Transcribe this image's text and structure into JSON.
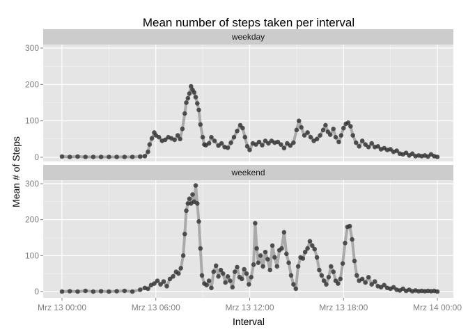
{
  "chart_data": {
    "type": "line",
    "title": "Mean number of steps taken per interval",
    "xlabel": "Interval",
    "ylabel": "Mean # of Steps",
    "x_unit": "hours since Mrz 13 00:00",
    "xlim": [
      0,
      24
    ],
    "ylim": [
      0,
      300
    ],
    "y_ticks": [
      0,
      100,
      200,
      300
    ],
    "x_ticks": [
      {
        "value": 0,
        "label": "Mrz 13 00:00"
      },
      {
        "value": 6,
        "label": "Mrz 13 06:00"
      },
      {
        "value": 12,
        "label": "Mrz 13 12:00"
      },
      {
        "value": 18,
        "label": "Mrz 13 18:00"
      },
      {
        "value": 24,
        "label": "Mrz 14 00:00"
      }
    ],
    "grid": true,
    "line_color": "#aaaaaa",
    "point_color": "#333333",
    "panel_background": "#e5e5e5",
    "strip_background": "#cccccc",
    "panels": [
      {
        "name": "weekday",
        "points": [
          [
            0,
            2
          ],
          [
            0.5,
            1
          ],
          [
            1,
            2
          ],
          [
            1.5,
            1
          ],
          [
            2,
            1
          ],
          [
            2.5,
            1
          ],
          [
            3,
            1
          ],
          [
            3.5,
            1
          ],
          [
            4,
            1
          ],
          [
            4.5,
            1
          ],
          [
            5,
            2
          ],
          [
            5.3,
            3
          ],
          [
            5.5,
            15
          ],
          [
            5.6,
            35
          ],
          [
            5.75,
            52
          ],
          [
            5.9,
            68
          ],
          [
            6.0,
            60
          ],
          [
            6.2,
            55
          ],
          [
            6.4,
            45
          ],
          [
            6.6,
            48
          ],
          [
            6.8,
            55
          ],
          [
            7.0,
            52
          ],
          [
            7.2,
            48
          ],
          [
            7.4,
            60
          ],
          [
            7.55,
            50
          ],
          [
            7.7,
            78
          ],
          [
            7.85,
            120
          ],
          [
            7.95,
            150
          ],
          [
            8.05,
            162
          ],
          [
            8.15,
            175
          ],
          [
            8.25,
            195
          ],
          [
            8.35,
            185
          ],
          [
            8.45,
            178
          ],
          [
            8.55,
            165
          ],
          [
            8.65,
            148
          ],
          [
            8.75,
            130
          ],
          [
            8.85,
            90
          ],
          [
            9.0,
            55
          ],
          [
            9.1,
            35
          ],
          [
            9.2,
            33
          ],
          [
            9.4,
            38
          ],
          [
            9.55,
            55
          ],
          [
            9.75,
            45
          ],
          [
            10.0,
            32
          ],
          [
            10.2,
            38
          ],
          [
            10.4,
            28
          ],
          [
            10.6,
            26
          ],
          [
            10.8,
            40
          ],
          [
            11.0,
            55
          ],
          [
            11.2,
            72
          ],
          [
            11.4,
            88
          ],
          [
            11.55,
            80
          ],
          [
            11.7,
            55
          ],
          [
            11.85,
            30
          ],
          [
            12.0,
            20
          ],
          [
            12.2,
            38
          ],
          [
            12.4,
            35
          ],
          [
            12.6,
            42
          ],
          [
            12.8,
            33
          ],
          [
            13.0,
            45
          ],
          [
            13.2,
            38
          ],
          [
            13.4,
            45
          ],
          [
            13.6,
            40
          ],
          [
            13.8,
            42
          ],
          [
            14.0,
            35
          ],
          [
            14.2,
            25
          ],
          [
            14.4,
            38
          ],
          [
            14.6,
            32
          ],
          [
            14.8,
            40
          ],
          [
            15.0,
            75
          ],
          [
            15.15,
            100
          ],
          [
            15.3,
            82
          ],
          [
            15.5,
            60
          ],
          [
            15.7,
            68
          ],
          [
            15.9,
            55
          ],
          [
            16.1,
            45
          ],
          [
            16.3,
            50
          ],
          [
            16.5,
            60
          ],
          [
            16.7,
            75
          ],
          [
            16.85,
            88
          ],
          [
            17.0,
            70
          ],
          [
            17.15,
            62
          ],
          [
            17.35,
            78
          ],
          [
            17.5,
            55
          ],
          [
            17.7,
            42
          ],
          [
            17.85,
            60
          ],
          [
            18.0,
            80
          ],
          [
            18.15,
            92
          ],
          [
            18.3,
            95
          ],
          [
            18.45,
            85
          ],
          [
            18.6,
            60
          ],
          [
            18.8,
            40
          ],
          [
            19.0,
            30
          ],
          [
            19.2,
            45
          ],
          [
            19.4,
            35
          ],
          [
            19.6,
            28
          ],
          [
            19.8,
            38
          ],
          [
            20.0,
            28
          ],
          [
            20.2,
            30
          ],
          [
            20.4,
            22
          ],
          [
            20.6,
            25
          ],
          [
            20.8,
            20
          ],
          [
            21.0,
            22
          ],
          [
            21.2,
            15
          ],
          [
            21.4,
            18
          ],
          [
            21.6,
            10
          ],
          [
            21.8,
            8
          ],
          [
            22.0,
            12
          ],
          [
            22.2,
            5
          ],
          [
            22.4,
            10
          ],
          [
            22.6,
            3
          ],
          [
            22.8,
            5
          ],
          [
            23.0,
            3
          ],
          [
            23.2,
            5
          ],
          [
            23.4,
            2
          ],
          [
            23.6,
            8
          ],
          [
            23.8,
            3
          ],
          [
            24.0,
            1
          ]
        ]
      },
      {
        "name": "weekend",
        "points": [
          [
            0,
            0
          ],
          [
            0.5,
            1
          ],
          [
            1,
            0
          ],
          [
            1.5,
            2
          ],
          [
            2,
            0
          ],
          [
            2.5,
            1
          ],
          [
            3,
            0
          ],
          [
            3.5,
            1
          ],
          [
            4,
            2
          ],
          [
            4.5,
            0
          ],
          [
            5,
            5
          ],
          [
            5.3,
            10
          ],
          [
            5.5,
            8
          ],
          [
            5.7,
            18
          ],
          [
            5.9,
            22
          ],
          [
            6.1,
            30
          ],
          [
            6.3,
            20
          ],
          [
            6.5,
            28
          ],
          [
            6.7,
            15
          ],
          [
            6.9,
            35
          ],
          [
            7.1,
            42
          ],
          [
            7.3,
            55
          ],
          [
            7.45,
            50
          ],
          [
            7.6,
            65
          ],
          [
            7.75,
            100
          ],
          [
            7.85,
            160
          ],
          [
            7.95,
            225
          ],
          [
            8.05,
            245
          ],
          [
            8.15,
            258
          ],
          [
            8.25,
            245
          ],
          [
            8.35,
            270
          ],
          [
            8.45,
            250
          ],
          [
            8.55,
            295
          ],
          [
            8.65,
            245
          ],
          [
            8.75,
            195
          ],
          [
            8.85,
            120
          ],
          [
            8.95,
            45
          ],
          [
            9.1,
            22
          ],
          [
            9.25,
            18
          ],
          [
            9.4,
            30
          ],
          [
            9.55,
            10
          ],
          [
            9.7,
            55
          ],
          [
            9.85,
            72
          ],
          [
            10.0,
            42
          ],
          [
            10.15,
            60
          ],
          [
            10.3,
            50
          ],
          [
            10.45,
            25
          ],
          [
            10.6,
            42
          ],
          [
            10.75,
            30
          ],
          [
            10.9,
            12
          ],
          [
            11.05,
            55
          ],
          [
            11.2,
            68
          ],
          [
            11.35,
            40
          ],
          [
            11.5,
            35
          ],
          [
            11.65,
            62
          ],
          [
            11.8,
            50
          ],
          [
            11.95,
            20
          ],
          [
            12.1,
            40
          ],
          [
            12.25,
            75
          ],
          [
            12.35,
            190
          ],
          [
            12.45,
            120
          ],
          [
            12.55,
            80
          ],
          [
            12.7,
            100
          ],
          [
            12.85,
            70
          ],
          [
            13.0,
            110
          ],
          [
            13.15,
            90
          ],
          [
            13.3,
            60
          ],
          [
            13.45,
            128
          ],
          [
            13.6,
            95
          ],
          [
            13.75,
            70
          ],
          [
            13.9,
            115
          ],
          [
            14.05,
            120
          ],
          [
            14.2,
            165
          ],
          [
            14.35,
            105
          ],
          [
            14.5,
            80
          ],
          [
            14.65,
            45
          ],
          [
            14.8,
            20
          ],
          [
            14.95,
            8
          ],
          [
            15.1,
            70
          ],
          [
            15.25,
            95
          ],
          [
            15.4,
            92
          ],
          [
            15.55,
            110
          ],
          [
            15.7,
            120
          ],
          [
            15.85,
            140
          ],
          [
            16.0,
            128
          ],
          [
            16.15,
            118
          ],
          [
            16.3,
            95
          ],
          [
            16.45,
            60
          ],
          [
            16.6,
            45
          ],
          [
            16.75,
            30
          ],
          [
            16.9,
            20
          ],
          [
            17.05,
            40
          ],
          [
            17.2,
            70
          ],
          [
            17.35,
            55
          ],
          [
            17.5,
            30
          ],
          [
            17.65,
            22
          ],
          [
            17.8,
            35
          ],
          [
            17.95,
            78
          ],
          [
            18.1,
            135
          ],
          [
            18.25,
            180
          ],
          [
            18.4,
            182
          ],
          [
            18.55,
            145
          ],
          [
            18.7,
            85
          ],
          [
            18.85,
            45
          ],
          [
            19.0,
            30
          ],
          [
            19.2,
            35
          ],
          [
            19.4,
            25
          ],
          [
            19.6,
            40
          ],
          [
            19.8,
            20
          ],
          [
            20.0,
            28
          ],
          [
            20.2,
            15
          ],
          [
            20.4,
            12
          ],
          [
            20.6,
            18
          ],
          [
            20.8,
            10
          ],
          [
            21.0,
            8
          ],
          [
            21.2,
            12
          ],
          [
            21.4,
            5
          ],
          [
            21.6,
            3
          ],
          [
            21.8,
            8
          ],
          [
            22.0,
            2
          ],
          [
            22.2,
            5
          ],
          [
            22.4,
            1
          ],
          [
            22.6,
            3
          ],
          [
            22.8,
            1
          ],
          [
            23.0,
            2
          ],
          [
            23.2,
            1
          ],
          [
            23.4,
            2
          ],
          [
            23.6,
            1
          ],
          [
            23.8,
            2
          ],
          [
            24.0,
            0
          ]
        ]
      }
    ]
  }
}
